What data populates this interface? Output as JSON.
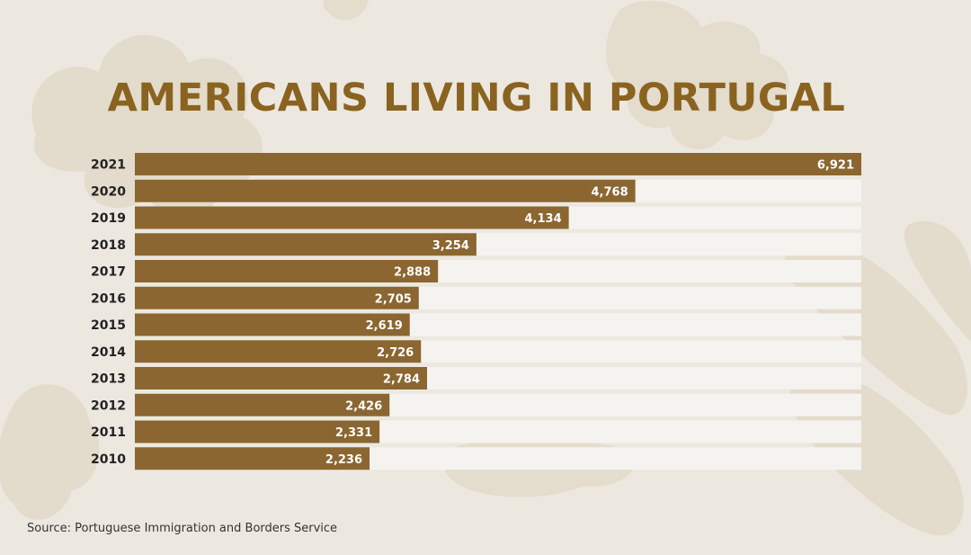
{
  "colors": {
    "background": "#ece8e0",
    "bar": "#8b6630",
    "title": "#8a6320",
    "track": "#f5f3ef",
    "decor": "#e0d5c3"
  },
  "chart_data": {
    "type": "bar",
    "orientation": "horizontal",
    "title": "AMERICANS LIVING IN PORTUGAL",
    "categories": [
      "2021",
      "2020",
      "2019",
      "2018",
      "2017",
      "2016",
      "2015",
      "2014",
      "2013",
      "2012",
      "2011",
      "2010"
    ],
    "values": [
      6921,
      4768,
      4134,
      3254,
      2888,
      2705,
      2619,
      2726,
      2784,
      2426,
      2331,
      2236
    ],
    "value_labels": [
      "6,921",
      "4,768",
      "4,134",
      "3,254",
      "2,888",
      "2,705",
      "2,619",
      "2,726",
      "2,784",
      "2,426",
      "2,331",
      "2,236"
    ],
    "xlim": [
      0,
      6921
    ],
    "xlabel": "",
    "ylabel": "",
    "grid": false,
    "legend": "none"
  },
  "footer": {
    "source": "Source: Portuguese Immigration and Borders Service"
  }
}
